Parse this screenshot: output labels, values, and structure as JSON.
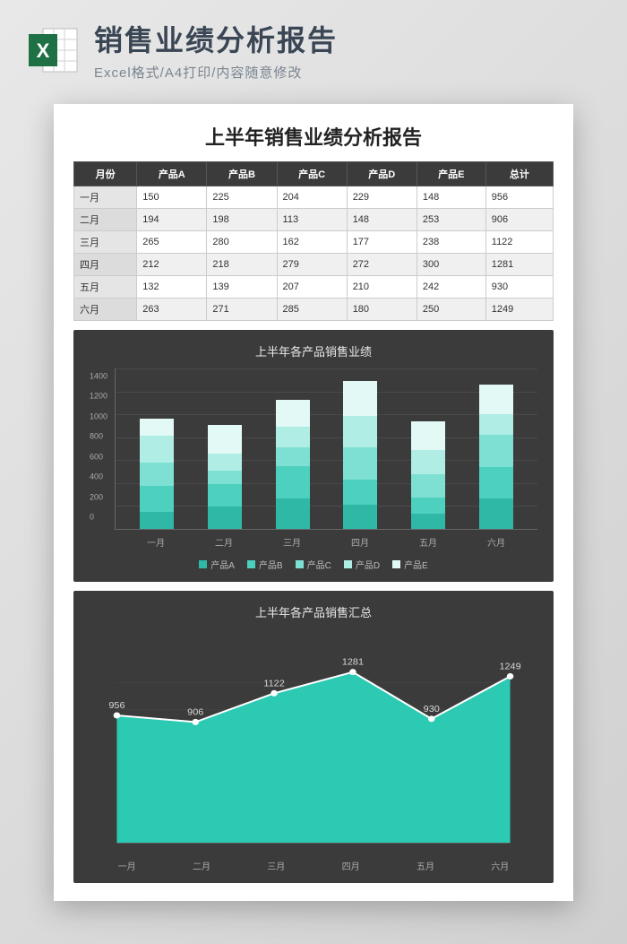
{
  "header": {
    "title": "销售业绩分析报告",
    "subtitle": "Excel格式/A4打印/内容随意修改"
  },
  "document": {
    "title": "上半年销售业绩分析报告",
    "table": {
      "columns": [
        "月份",
        "产品A",
        "产品B",
        "产品C",
        "产品D",
        "产品E",
        "总计"
      ],
      "rows": [
        [
          "一月",
          150,
          225,
          204,
          229,
          148,
          956
        ],
        [
          "二月",
          194,
          198,
          113,
          148,
          253,
          906
        ],
        [
          "三月",
          265,
          280,
          162,
          177,
          238,
          1122
        ],
        [
          "四月",
          212,
          218,
          279,
          272,
          300,
          1281
        ],
        [
          "五月",
          132,
          139,
          207,
          210,
          242,
          930
        ],
        [
          "六月",
          263,
          271,
          285,
          180,
          250,
          1249
        ]
      ]
    },
    "bar_chart": {
      "title": "上半年各产品销售业绩",
      "categories": [
        "一月",
        "二月",
        "三月",
        "四月",
        "五月",
        "六月"
      ],
      "ymax": 1400,
      "ytick_step": 200,
      "series": [
        {
          "name": "产品A",
          "color": "#2fb8a6",
          "values": [
            150,
            194,
            265,
            212,
            132,
            263
          ]
        },
        {
          "name": "产品B",
          "color": "#4dd0be",
          "values": [
            225,
            198,
            280,
            218,
            139,
            271
          ]
        },
        {
          "name": "产品C",
          "color": "#7de0d2",
          "values": [
            204,
            113,
            162,
            279,
            207,
            285
          ]
        },
        {
          "name": "产品D",
          "color": "#b0ede4",
          "values": [
            229,
            148,
            177,
            272,
            210,
            180
          ]
        },
        {
          "name": "产品E",
          "color": "#e3f9f5",
          "values": [
            148,
            253,
            238,
            300,
            242,
            250
          ]
        }
      ],
      "background_color": "#3b3b3b",
      "grid_color": "#4a4a4a",
      "text_color": "#aaaaaa"
    },
    "area_chart": {
      "title": "上半年各产品销售汇总",
      "categories": [
        "一月",
        "二月",
        "三月",
        "四月",
        "五月",
        "六月"
      ],
      "values": [
        956,
        906,
        1122,
        1281,
        930,
        1249
      ],
      "ymax": 1400,
      "fill_color": "#2cc9b3",
      "line_color": "#ffffff",
      "marker_color": "#ffffff",
      "label_color": "#d8d8d8",
      "background_color": "#3b3b3b"
    }
  }
}
